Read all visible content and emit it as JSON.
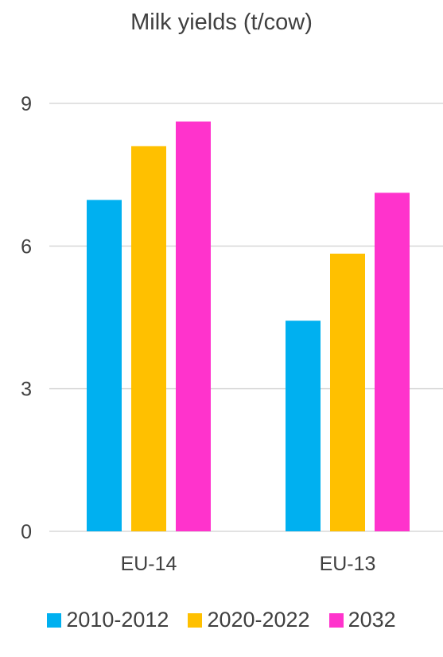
{
  "chart_data": {
    "type": "bar",
    "title": "Milk yields (t/cow)",
    "categories": [
      "EU-14",
      "EU-13"
    ],
    "series": [
      {
        "name": "2010-2012",
        "color": "#00B0F0",
        "values": [
          6.97,
          4.43
        ]
      },
      {
        "name": "2020-2022",
        "color": "#FFC000",
        "values": [
          8.1,
          5.84
        ]
      },
      {
        "name": "2032",
        "color": "#FF33CC",
        "values": [
          8.62,
          7.12
        ]
      }
    ],
    "yticks": [
      "0",
      "3",
      "6",
      "9"
    ],
    "ylim": [
      0,
      9
    ],
    "grid": true,
    "legend_position": "bottom"
  }
}
